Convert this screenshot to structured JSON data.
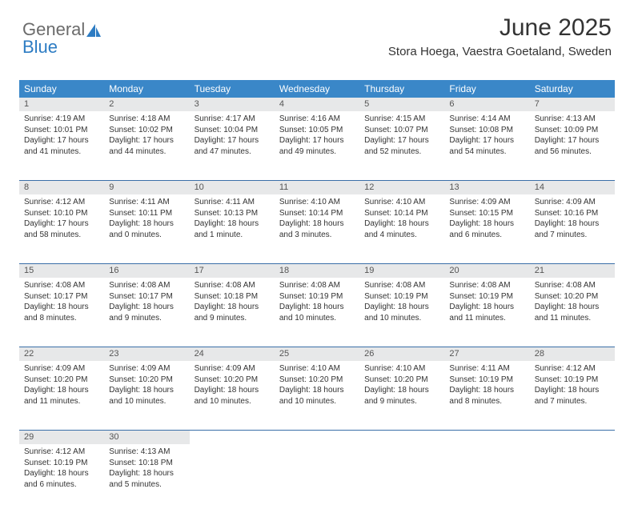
{
  "logo": {
    "text1": "General",
    "text2": "Blue"
  },
  "title": "June 2025",
  "location": "Stora Hoega, Vaestra Goetaland, Sweden",
  "colors": {
    "header_bg": "#3a87c8",
    "header_text": "#ffffff",
    "daynum_bg": "#e7e8e9",
    "border": "#3a6fa8",
    "text": "#333333",
    "logo_gray": "#6b6b6b",
    "logo_blue": "#2d7cc3",
    "page_bg": "#ffffff"
  },
  "day_headers": [
    "Sunday",
    "Monday",
    "Tuesday",
    "Wednesday",
    "Thursday",
    "Friday",
    "Saturday"
  ],
  "weeks": [
    [
      {
        "n": "1",
        "sr": "4:19 AM",
        "ss": "10:01 PM",
        "d1": "17 hours",
        "d2": "and 41 minutes."
      },
      {
        "n": "2",
        "sr": "4:18 AM",
        "ss": "10:02 PM",
        "d1": "17 hours",
        "d2": "and 44 minutes."
      },
      {
        "n": "3",
        "sr": "4:17 AM",
        "ss": "10:04 PM",
        "d1": "17 hours",
        "d2": "and 47 minutes."
      },
      {
        "n": "4",
        "sr": "4:16 AM",
        "ss": "10:05 PM",
        "d1": "17 hours",
        "d2": "and 49 minutes."
      },
      {
        "n": "5",
        "sr": "4:15 AM",
        "ss": "10:07 PM",
        "d1": "17 hours",
        "d2": "and 52 minutes."
      },
      {
        "n": "6",
        "sr": "4:14 AM",
        "ss": "10:08 PM",
        "d1": "17 hours",
        "d2": "and 54 minutes."
      },
      {
        "n": "7",
        "sr": "4:13 AM",
        "ss": "10:09 PM",
        "d1": "17 hours",
        "d2": "and 56 minutes."
      }
    ],
    [
      {
        "n": "8",
        "sr": "4:12 AM",
        "ss": "10:10 PM",
        "d1": "17 hours",
        "d2": "and 58 minutes."
      },
      {
        "n": "9",
        "sr": "4:11 AM",
        "ss": "10:11 PM",
        "d1": "18 hours",
        "d2": "and 0 minutes."
      },
      {
        "n": "10",
        "sr": "4:11 AM",
        "ss": "10:13 PM",
        "d1": "18 hours",
        "d2": "and 1 minute."
      },
      {
        "n": "11",
        "sr": "4:10 AM",
        "ss": "10:14 PM",
        "d1": "18 hours",
        "d2": "and 3 minutes."
      },
      {
        "n": "12",
        "sr": "4:10 AM",
        "ss": "10:14 PM",
        "d1": "18 hours",
        "d2": "and 4 minutes."
      },
      {
        "n": "13",
        "sr": "4:09 AM",
        "ss": "10:15 PM",
        "d1": "18 hours",
        "d2": "and 6 minutes."
      },
      {
        "n": "14",
        "sr": "4:09 AM",
        "ss": "10:16 PM",
        "d1": "18 hours",
        "d2": "and 7 minutes."
      }
    ],
    [
      {
        "n": "15",
        "sr": "4:08 AM",
        "ss": "10:17 PM",
        "d1": "18 hours",
        "d2": "and 8 minutes."
      },
      {
        "n": "16",
        "sr": "4:08 AM",
        "ss": "10:17 PM",
        "d1": "18 hours",
        "d2": "and 9 minutes."
      },
      {
        "n": "17",
        "sr": "4:08 AM",
        "ss": "10:18 PM",
        "d1": "18 hours",
        "d2": "and 9 minutes."
      },
      {
        "n": "18",
        "sr": "4:08 AM",
        "ss": "10:19 PM",
        "d1": "18 hours",
        "d2": "and 10 minutes."
      },
      {
        "n": "19",
        "sr": "4:08 AM",
        "ss": "10:19 PM",
        "d1": "18 hours",
        "d2": "and 10 minutes."
      },
      {
        "n": "20",
        "sr": "4:08 AM",
        "ss": "10:19 PM",
        "d1": "18 hours",
        "d2": "and 11 minutes."
      },
      {
        "n": "21",
        "sr": "4:08 AM",
        "ss": "10:20 PM",
        "d1": "18 hours",
        "d2": "and 11 minutes."
      }
    ],
    [
      {
        "n": "22",
        "sr": "4:09 AM",
        "ss": "10:20 PM",
        "d1": "18 hours",
        "d2": "and 11 minutes."
      },
      {
        "n": "23",
        "sr": "4:09 AM",
        "ss": "10:20 PM",
        "d1": "18 hours",
        "d2": "and 10 minutes."
      },
      {
        "n": "24",
        "sr": "4:09 AM",
        "ss": "10:20 PM",
        "d1": "18 hours",
        "d2": "and 10 minutes."
      },
      {
        "n": "25",
        "sr": "4:10 AM",
        "ss": "10:20 PM",
        "d1": "18 hours",
        "d2": "and 10 minutes."
      },
      {
        "n": "26",
        "sr": "4:10 AM",
        "ss": "10:20 PM",
        "d1": "18 hours",
        "d2": "and 9 minutes."
      },
      {
        "n": "27",
        "sr": "4:11 AM",
        "ss": "10:19 PM",
        "d1": "18 hours",
        "d2": "and 8 minutes."
      },
      {
        "n": "28",
        "sr": "4:12 AM",
        "ss": "10:19 PM",
        "d1": "18 hours",
        "d2": "and 7 minutes."
      }
    ],
    [
      {
        "n": "29",
        "sr": "4:12 AM",
        "ss": "10:19 PM",
        "d1": "18 hours",
        "d2": "and 6 minutes."
      },
      {
        "n": "30",
        "sr": "4:13 AM",
        "ss": "10:18 PM",
        "d1": "18 hours",
        "d2": "and 5 minutes."
      },
      null,
      null,
      null,
      null,
      null
    ]
  ],
  "labels": {
    "sunrise": "Sunrise: ",
    "sunset": "Sunset: ",
    "daylight": "Daylight: "
  }
}
